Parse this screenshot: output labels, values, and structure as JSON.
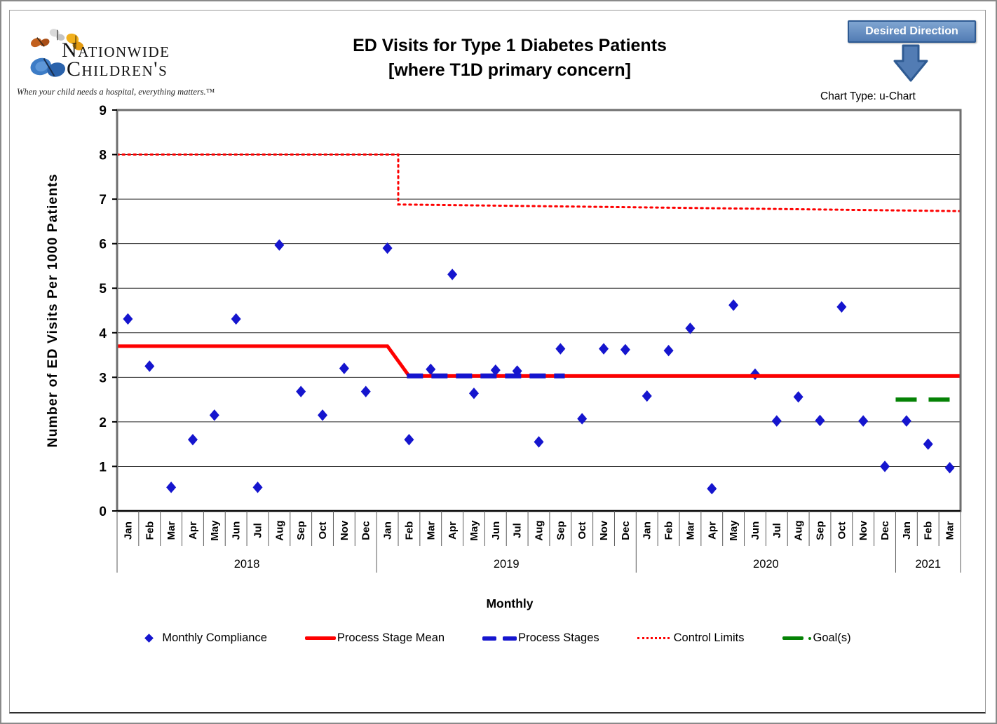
{
  "page": {
    "logo": {
      "name_line1": "Nationwide",
      "name_line2": "Children's",
      "tagline": "When your child needs a hospital, everything matters.™"
    },
    "desired_direction_label": "Desired Direction",
    "chart_type_label": "Chart Type: u-Chart",
    "colors": {
      "point_blue": "#1515ce",
      "line_red": "#fe0000",
      "goal_green": "#058205",
      "button_blue": "#527cb4",
      "button_border": "#2e5a92"
    }
  },
  "chart_data": {
    "type": "scatter",
    "subtype": "u-chart control chart",
    "title": "ED Visits for Type 1 Diabetes Patients [where T1D primary concern]",
    "title_line1": "ED Visits for Type 1 Diabetes Patients",
    "title_line2": "[where T1D primary concern]",
    "xlabel": "Monthly",
    "ylabel": "Number of ED Visits Per 1000 Patients",
    "ylim": [
      0,
      9
    ],
    "yticks": [
      0,
      1,
      2,
      3,
      4,
      5,
      6,
      7,
      8,
      9
    ],
    "grid": "horizontal",
    "legend_position": "bottom",
    "years": [
      {
        "label": "2018",
        "months": 12
      },
      {
        "label": "2019",
        "months": 12
      },
      {
        "label": "2020",
        "months": 12
      },
      {
        "label": "2021",
        "months": 3
      }
    ],
    "month_labels": [
      "Jan",
      "Feb",
      "Mar",
      "Apr",
      "May",
      "Jun",
      "Jul",
      "Aug",
      "Sep",
      "Oct",
      "Nov",
      "Dec",
      "Jan",
      "Feb",
      "Mar",
      "Apr",
      "May",
      "Jun",
      "Jul",
      "Aug",
      "Sep",
      "Oct",
      "Nov",
      "Dec",
      "Jan",
      "Feb",
      "Mar",
      "Apr",
      "May",
      "Jun",
      "Jul",
      "Aug",
      "Sep",
      "Oct",
      "Nov",
      "Dec",
      "Jan",
      "Feb",
      "Mar"
    ],
    "series": [
      {
        "name": "Monthly Compliance",
        "type": "points",
        "color": "#1515ce",
        "values": [
          4.31,
          3.25,
          0.53,
          1.6,
          2.15,
          4.31,
          0.53,
          5.97,
          2.68,
          2.15,
          3.2,
          2.68,
          5.9,
          1.6,
          3.18,
          5.31,
          2.64,
          3.16,
          3.14,
          1.55,
          3.64,
          2.07,
          3.64,
          3.62,
          2.58,
          3.6,
          4.1,
          0.5,
          4.62,
          3.07,
          2.02,
          2.56,
          2.03,
          4.58,
          2.02,
          1.0,
          2.02,
          1.5,
          0.97
        ]
      },
      {
        "name": "Process Stage Mean",
        "type": "line",
        "color": "#fe0000",
        "width": 5,
        "stage_means": [
          3.7,
          3.03
        ],
        "points": [
          [
            0,
            3.7
          ],
          [
            12.5,
            3.7
          ],
          [
            13.5,
            3.03
          ],
          [
            39,
            3.03
          ]
        ]
      },
      {
        "name": "Process Stages",
        "type": "dashed",
        "color": "#1515ce",
        "width": 7,
        "dash": "23 12",
        "points": [
          [
            13.4,
            3.03
          ],
          [
            20.7,
            3.03
          ]
        ]
      },
      {
        "name": "Control Limits",
        "type": "dotted",
        "color": "#fe0000",
        "width": 3,
        "dash": "2.5 5.5",
        "upper_limit_stage1": 8.0,
        "upper_limit_stage2_start": 6.88,
        "upper_limit_stage2_end": 6.73,
        "lower_limit": 0,
        "paths": [
          [
            [
              0,
              8.0
            ],
            [
              13,
              8.0
            ],
            [
              13,
              6.88
            ],
            [
              39,
              6.73
            ]
          ],
          [
            [
              0,
              0
            ],
            [
              39,
              0
            ]
          ]
        ]
      },
      {
        "name": "Goal(s)",
        "type": "dashed",
        "color": "#058205",
        "width": 6,
        "dash": "30 17",
        "goal_value": 2.5,
        "points": [
          [
            36,
            2.5
          ],
          [
            39,
            2.5
          ]
        ]
      }
    ]
  }
}
